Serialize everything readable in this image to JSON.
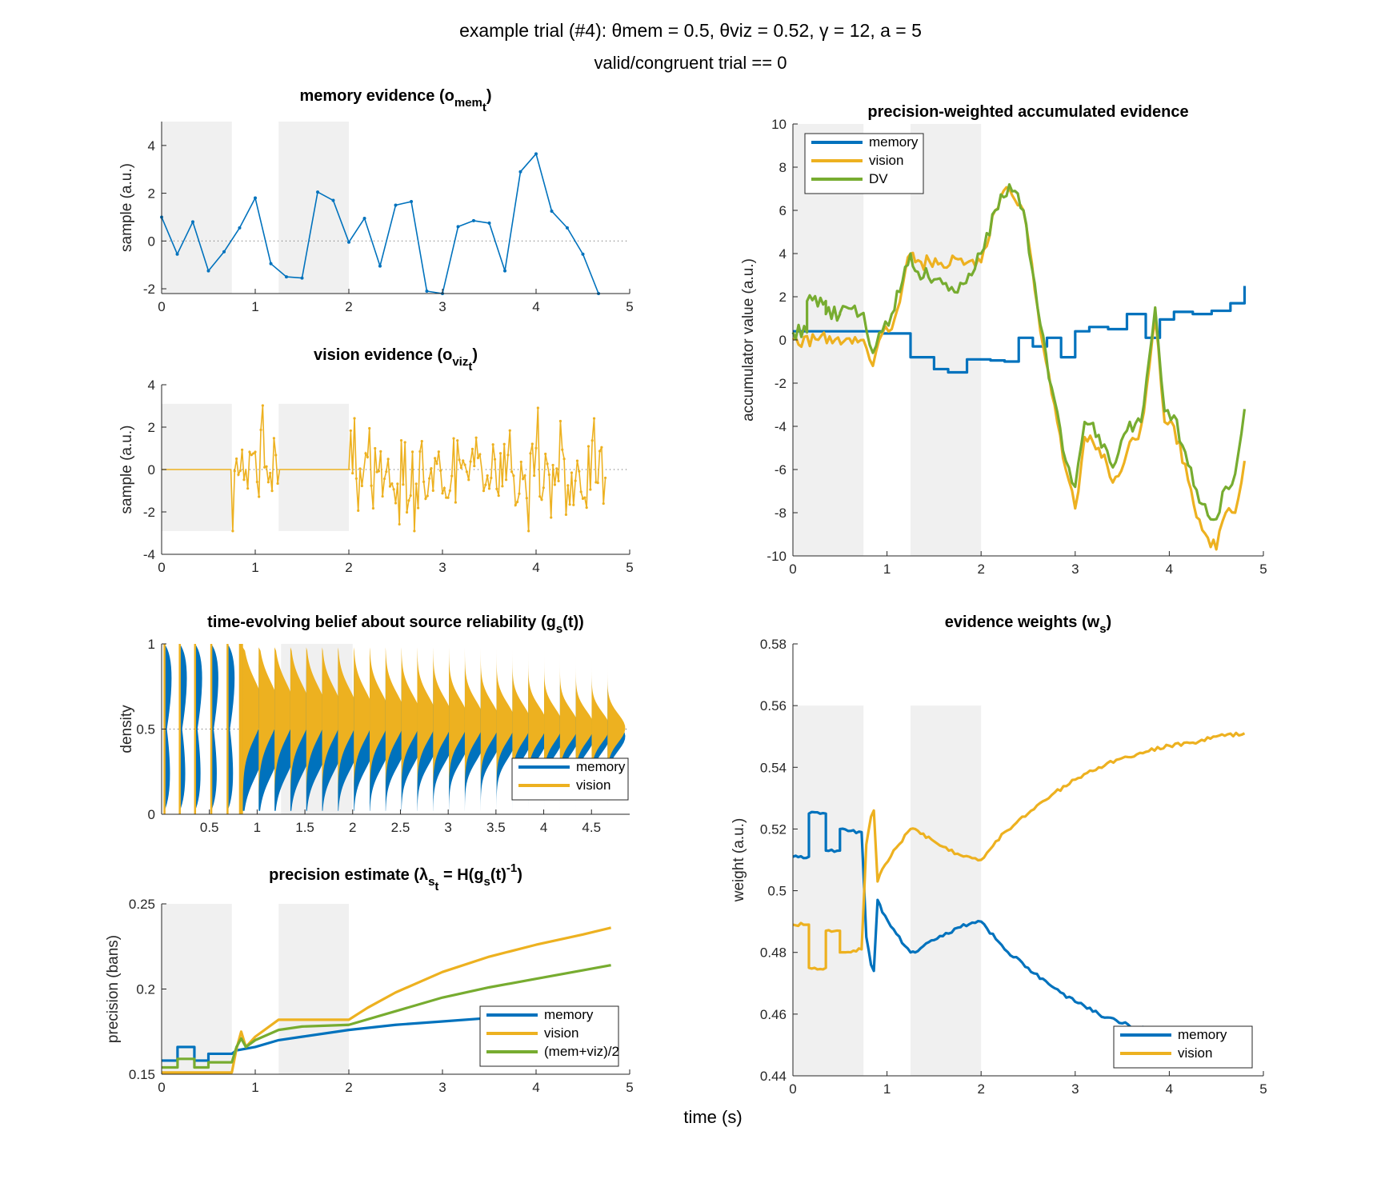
{
  "figure": {
    "suptitle_line1": "example trial (#4): θmem = 0.5,  θviz = 0.52,  γ = 12,  a = 5",
    "suptitle_line2": "valid/congruent trial == 0",
    "shared_xlabel": "time (s)"
  },
  "colors": {
    "memory": "#0072BD",
    "vision": "#EDB120",
    "dv": "#77AC30",
    "shade": "#F0F0F0",
    "axis": "#262626"
  },
  "chart_data": [
    {
      "id": "memory-evidence",
      "type": "line",
      "title": "memory evidence (o",
      "title_sub": "mem",
      "title_subsub": "t",
      "title_end": ")",
      "ylabel": "sample (a.u.)",
      "xlim": [
        0,
        5
      ],
      "ylim": [
        -2.2,
        5
      ],
      "xticks": [
        "0",
        "1",
        "2",
        "3",
        "4",
        "5"
      ],
      "yticks": [
        "-2",
        "0",
        "2",
        "4"
      ],
      "shaded": [
        [
          0,
          0.75
        ],
        [
          1.25,
          2.0
        ]
      ],
      "series": [
        {
          "color": "memory",
          "x": [
            0,
            0.167,
            0.333,
            0.5,
            0.667,
            0.833,
            1.0,
            1.167,
            1.333,
            1.5,
            1.667,
            1.833,
            2.0,
            2.167,
            2.333,
            2.5,
            2.667,
            2.833,
            3.0,
            3.167,
            3.333,
            3.5,
            3.667,
            3.833,
            4.0,
            4.167,
            4.333,
            4.5,
            4.667
          ],
          "y": [
            1.0,
            -0.55,
            0.8,
            -1.25,
            -0.45,
            0.55,
            1.8,
            -0.95,
            -1.5,
            -1.55,
            2.05,
            1.7,
            -0.05,
            0.95,
            -1.05,
            1.5,
            1.65,
            -2.1,
            -2.2,
            0.6,
            0.85,
            0.75,
            -1.25,
            2.9,
            3.65,
            1.25,
            0.55,
            -0.55,
            -2.2
          ]
        }
      ]
    },
    {
      "id": "vision-evidence",
      "type": "line",
      "title": "vision evidence (o",
      "title_sub": "viz",
      "title_subsub": "t",
      "title_end": ")",
      "ylabel": "sample (a.u.)",
      "xlim": [
        0,
        5
      ],
      "ylim": [
        -4,
        4
      ],
      "xticks": [
        "0",
        "1",
        "2",
        "3",
        "4",
        "5"
      ],
      "yticks": [
        "-4",
        "-2",
        "0",
        "2",
        "4"
      ],
      "shaded": [
        [
          0,
          0.75
        ],
        [
          1.25,
          2.0
        ]
      ],
      "series": [
        {
          "color": "vision",
          "generated": "noise",
          "zero_intervals": [
            [
              0,
              0.75
            ],
            [
              1.25,
              2.0
            ]
          ],
          "t_end": 4.75,
          "dt": 0.02,
          "amplitude": 1.1
        }
      ]
    },
    {
      "id": "belief",
      "type": "area",
      "title": "time-evolving belief about source reliability (g",
      "title_sub": "s",
      "title_end": "(t))",
      "ylabel": "density",
      "xlim": [
        0,
        4.9
      ],
      "ylim": [
        0,
        1
      ],
      "xticks": [
        "0.5",
        "1",
        "1.5",
        "2",
        "2.5",
        "3",
        "3.5",
        "4",
        "4.5"
      ],
      "yticks": [
        "0",
        "0.5",
        "1"
      ],
      "shaded": [
        [
          1.25,
          2.0
        ]
      ],
      "legend": [
        "memory",
        "vision"
      ],
      "legend_loc": "southeast",
      "series": [
        {
          "name": "memory",
          "color": "memory"
        },
        {
          "name": "vision",
          "color": "vision"
        }
      ]
    },
    {
      "id": "precision",
      "type": "line",
      "title": "precision estimate (λ",
      "title_sub": "s",
      "title_subsub": "t",
      "title_mid": " = H(g",
      "title_sub2": "s",
      "title_mid2": "(t)",
      "title_sup": "-1",
      "title_end": ")",
      "ylabel": "precision (bans)",
      "xlim": [
        0,
        5
      ],
      "ylim": [
        0.15,
        0.25
      ],
      "xticks": [
        "0",
        "1",
        "2",
        "3",
        "4",
        "5"
      ],
      "yticks": [
        "0.15",
        "0.2",
        "0.25"
      ],
      "shaded": [
        [
          0,
          0.75
        ],
        [
          1.25,
          2.0
        ]
      ],
      "legend": [
        "memory",
        "vision",
        "(mem+viz)/2"
      ],
      "legend_loc": "southeast",
      "series": [
        {
          "name": "memory",
          "color": "memory",
          "x": [
            0,
            0.17,
            0.17,
            0.35,
            0.35,
            0.5,
            0.5,
            0.75,
            0.8,
            0.9,
            1.0,
            1.25,
            1.5,
            2.0,
            2.5,
            3.0,
            3.5,
            4.0,
            4.5,
            4.8
          ],
          "y": [
            0.158,
            0.158,
            0.166,
            0.166,
            0.158,
            0.158,
            0.162,
            0.162,
            0.164,
            0.165,
            0.166,
            0.17,
            0.172,
            0.176,
            0.179,
            0.181,
            0.183,
            0.185,
            0.187,
            0.188
          ]
        },
        {
          "name": "vision",
          "color": "vision",
          "x": [
            0,
            0.75,
            0.8,
            0.85,
            0.9,
            1.0,
            1.25,
            2.0,
            2.2,
            2.5,
            3.0,
            3.5,
            4.0,
            4.5,
            4.8
          ],
          "y": [
            0.151,
            0.151,
            0.165,
            0.175,
            0.166,
            0.172,
            0.182,
            0.182,
            0.189,
            0.198,
            0.21,
            0.219,
            0.226,
            0.232,
            0.236
          ]
        },
        {
          "name": "(mem+viz)/2",
          "color": "dv",
          "x": [
            0,
            0.17,
            0.17,
            0.35,
            0.35,
            0.5,
            0.5,
            0.75,
            0.8,
            0.85,
            0.9,
            1.0,
            1.25,
            1.5,
            2.0,
            2.5,
            3.0,
            3.5,
            4.0,
            4.5,
            4.8
          ],
          "y": [
            0.154,
            0.154,
            0.159,
            0.159,
            0.154,
            0.154,
            0.157,
            0.157,
            0.166,
            0.171,
            0.166,
            0.17,
            0.176,
            0.178,
            0.179,
            0.187,
            0.195,
            0.201,
            0.206,
            0.211,
            0.214
          ]
        }
      ]
    },
    {
      "id": "accumulated",
      "type": "line",
      "title": "precision-weighted accumulated evidence",
      "ylabel": "accumulator value (a.u.)",
      "xlim": [
        0,
        5
      ],
      "ylim": [
        -10,
        10
      ],
      "xticks": [
        "0",
        "1",
        "2",
        "3",
        "4",
        "5"
      ],
      "yticks": [
        "-10",
        "-8",
        "-6",
        "-4",
        "-2",
        "0",
        "2",
        "4",
        "6",
        "8",
        "10"
      ],
      "shaded": [
        [
          0,
          0.75
        ],
        [
          1.25,
          2.0
        ]
      ],
      "legend": [
        "memory",
        "vision",
        "DV"
      ],
      "legend_loc": "northwest",
      "series": [
        {
          "name": "memory",
          "color": "memory",
          "step": true,
          "x": [
            0,
            0.75,
            0.95,
            1.25,
            1.5,
            1.65,
            1.85,
            2.1,
            2.25,
            2.4,
            2.55,
            2.7,
            2.85,
            3.0,
            3.15,
            3.35,
            3.55,
            3.75,
            3.9,
            4.05,
            4.25,
            4.45,
            4.65,
            4.8
          ],
          "y": [
            0.4,
            0.4,
            0.3,
            -0.8,
            -1.35,
            -1.5,
            -0.9,
            -0.95,
            -1.0,
            0.1,
            -0.3,
            0.1,
            -0.8,
            0.4,
            0.6,
            0.5,
            1.2,
            0.1,
            0.95,
            1.3,
            1.2,
            1.35,
            1.7,
            2.5
          ]
        },
        {
          "name": "vision",
          "color": "vision",
          "x": [
            0,
            0.75,
            0.85,
            0.95,
            1.05,
            1.25,
            1.3,
            2.0,
            2.15,
            2.3,
            2.45,
            2.6,
            2.75,
            2.9,
            3.0,
            3.1,
            3.25,
            3.4,
            3.55,
            3.7,
            3.85,
            3.95,
            4.05,
            4.2,
            4.35,
            4.5,
            4.6,
            4.7,
            4.8
          ],
          "y": [
            0,
            0,
            -1.2,
            0.3,
            0.5,
            4.0,
            3.6,
            3.6,
            6.0,
            7.0,
            6.0,
            1.5,
            -2.5,
            -6.0,
            -7.8,
            -4.5,
            -5.0,
            -6.6,
            -5.2,
            -4.0,
            1.0,
            -3.8,
            -4.0,
            -6.5,
            -8.8,
            -9.7,
            -8.0,
            -8.0,
            -5.6
          ]
        },
        {
          "name": "DV",
          "color": "dv",
          "x": [
            0,
            0.15,
            0.15,
            0.35,
            0.35,
            0.5,
            0.5,
            0.75,
            0.85,
            0.95,
            1.05,
            1.25,
            1.3,
            1.5,
            1.75,
            1.9,
            2.0,
            2.15,
            2.3,
            2.45,
            2.6,
            2.75,
            2.9,
            3.0,
            3.1,
            3.25,
            3.4,
            3.55,
            3.7,
            3.85,
            3.95,
            4.05,
            4.2,
            4.35,
            4.5,
            4.6,
            4.7,
            4.8
          ],
          "y": [
            0.35,
            0.35,
            1.8,
            1.8,
            1.2,
            1.2,
            1.25,
            1.25,
            -0.6,
            0.4,
            1.2,
            4.0,
            3.2,
            2.8,
            2.2,
            3.0,
            4.0,
            6.0,
            7.2,
            6.0,
            1.5,
            -2.2,
            -5.6,
            -6.8,
            -3.8,
            -4.4,
            -5.9,
            -4.2,
            -3.8,
            1.5,
            -3.3,
            -3.5,
            -5.8,
            -7.6,
            -8.3,
            -6.8,
            -6.2,
            -3.2
          ]
        }
      ]
    },
    {
      "id": "weights",
      "type": "line",
      "title": "evidence weights (w",
      "title_sub": "s",
      "title_end": ")",
      "ylabel": "weight (a.u.)",
      "xlim": [
        0,
        5
      ],
      "ylim": [
        0.44,
        0.58
      ],
      "xticks": [
        "0",
        "1",
        "2",
        "3",
        "4",
        "5"
      ],
      "yticks": [
        "0.44",
        "0.46",
        "0.48",
        "0.5",
        "0.52",
        "0.54",
        "0.56",
        "0.58"
      ],
      "shaded": [
        [
          0,
          0.75
        ],
        [
          1.25,
          2.0
        ]
      ],
      "legend": [
        "memory",
        "vision"
      ],
      "legend_loc": "southeast",
      "series": [
        {
          "name": "memory",
          "color": "memory",
          "x": [
            0,
            0.17,
            0.17,
            0.35,
            0.35,
            0.5,
            0.5,
            0.73,
            0.78,
            0.83,
            0.86,
            0.9,
            0.95,
            1.1,
            1.25,
            1.3,
            1.5,
            1.75,
            2.0,
            2.25,
            2.5,
            2.75,
            3.0,
            3.25,
            3.5,
            3.75,
            4.0,
            4.25,
            4.5,
            4.8
          ],
          "y": [
            0.511,
            0.511,
            0.525,
            0.525,
            0.513,
            0.513,
            0.52,
            0.519,
            0.485,
            0.476,
            0.474,
            0.497,
            0.493,
            0.486,
            0.48,
            0.48,
            0.484,
            0.488,
            0.49,
            0.481,
            0.475,
            0.469,
            0.464,
            0.46,
            0.457,
            0.455,
            0.453,
            0.452,
            0.45,
            0.449
          ]
        },
        {
          "name": "vision",
          "color": "vision",
          "x": [
            0,
            0.17,
            0.17,
            0.35,
            0.35,
            0.5,
            0.5,
            0.73,
            0.78,
            0.83,
            0.86,
            0.9,
            0.95,
            1.1,
            1.25,
            1.3,
            1.5,
            1.75,
            2.0,
            2.25,
            2.5,
            2.75,
            3.0,
            3.25,
            3.5,
            3.75,
            4.0,
            4.25,
            4.5,
            4.8
          ],
          "y": [
            0.489,
            0.489,
            0.475,
            0.475,
            0.487,
            0.487,
            0.48,
            0.481,
            0.515,
            0.524,
            0.526,
            0.503,
            0.507,
            0.514,
            0.52,
            0.52,
            0.516,
            0.512,
            0.51,
            0.519,
            0.525,
            0.531,
            0.536,
            0.54,
            0.543,
            0.545,
            0.547,
            0.548,
            0.55,
            0.551
          ]
        }
      ]
    }
  ]
}
